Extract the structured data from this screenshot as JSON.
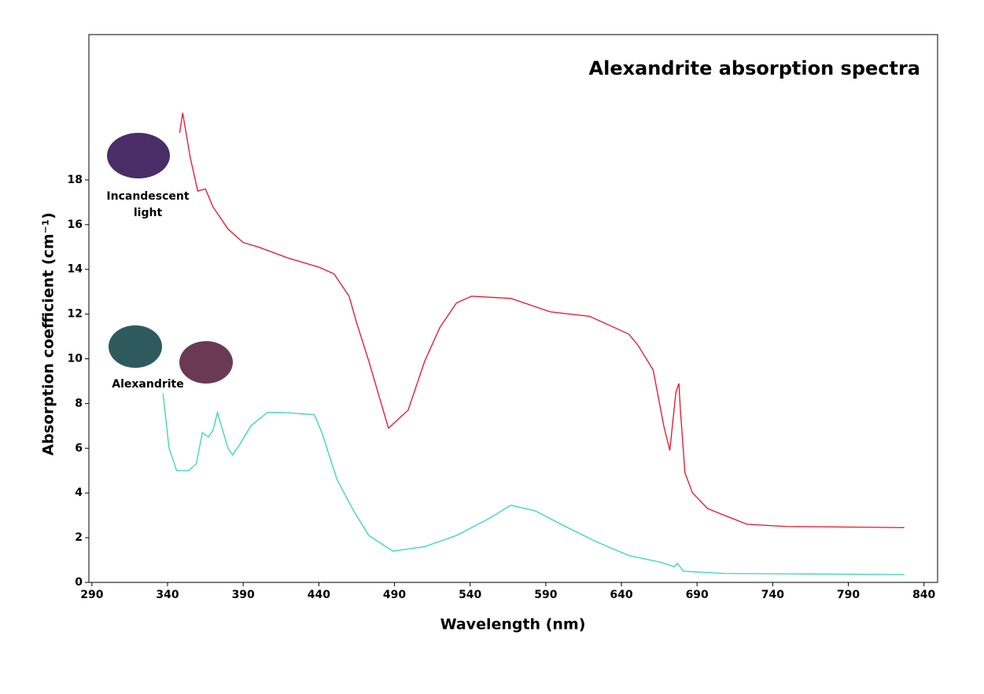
{
  "chart_data": {
    "type": "line",
    "title": "Alexandrite absorption spectra",
    "x_label": "Wavelength (nm)",
    "y_label": "Absorption coefficient (cm⁻¹)",
    "annotations": [
      "Incandescent",
      "light",
      "Alexandrite"
    ],
    "xlim": [
      288,
      849
    ],
    "ylim": [
      0,
      24.5
    ],
    "xticks": [
      290,
      340,
      390,
      440,
      490,
      540,
      590,
      640,
      690,
      740,
      790,
      840
    ],
    "yticks": [
      0,
      2,
      4,
      6,
      8,
      10,
      12,
      14,
      16,
      18
    ],
    "series": [
      {
        "color": "#e8102a",
        "x": [
          348,
          350,
          355,
          360,
          365,
          370,
          380,
          390,
          400,
          420,
          440,
          450,
          460,
          465,
          473,
          486,
          499,
          510,
          520,
          531,
          541,
          567,
          593,
          619,
          645,
          651,
          661,
          668,
          672,
          676,
          678,
          679,
          682,
          687,
          697,
          708,
          723,
          749,
          827
        ],
        "values": [
          20.1,
          21,
          19,
          17.5,
          17.6,
          16.8,
          15.8,
          15.2,
          15,
          14.5,
          14.1,
          13.8,
          12.8,
          11.6,
          9.9,
          6.9,
          7.7,
          9.9,
          11.4,
          12.5,
          12.8,
          12.7,
          12.1,
          11.9,
          11.1,
          10.6,
          9.5,
          7.0,
          5.9,
          8.5,
          8.9,
          7.7,
          4.9,
          4.0,
          3.3,
          3.0,
          2.6,
          2.5,
          2.45
        ]
      },
      {
        "color": "#33d6b8",
        "x": [
          337,
          341,
          346,
          354,
          359,
          363,
          367,
          370,
          373,
          376,
          380,
          383,
          388,
          395,
          406,
          416,
          437,
          442,
          452,
          463,
          473,
          489,
          510,
          531,
          551,
          567,
          583,
          603,
          624,
          645,
          666,
          675,
          677,
          681,
          708,
          827
        ],
        "values": [
          8.45,
          6.0,
          5.0,
          5.0,
          5.3,
          6.7,
          6.5,
          6.8,
          7.6,
          6.9,
          6.0,
          5.7,
          6.2,
          7.0,
          7.6,
          7.6,
          7.5,
          6.7,
          4.6,
          3.2,
          2.1,
          1.4,
          1.6,
          2.1,
          2.8,
          3.45,
          3.2,
          2.5,
          1.8,
          1.2,
          0.9,
          0.7,
          0.85,
          0.5,
          0.4,
          0.35
        ]
      }
    ]
  }
}
